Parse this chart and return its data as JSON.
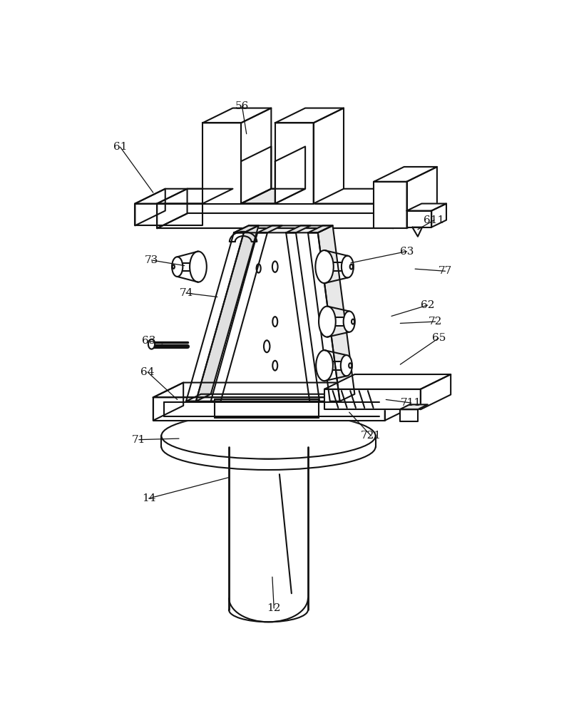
{
  "bg_color": "#ffffff",
  "line_color": "#111111",
  "lw": 1.5,
  "fig_width": 7.91,
  "fig_height": 10.0
}
